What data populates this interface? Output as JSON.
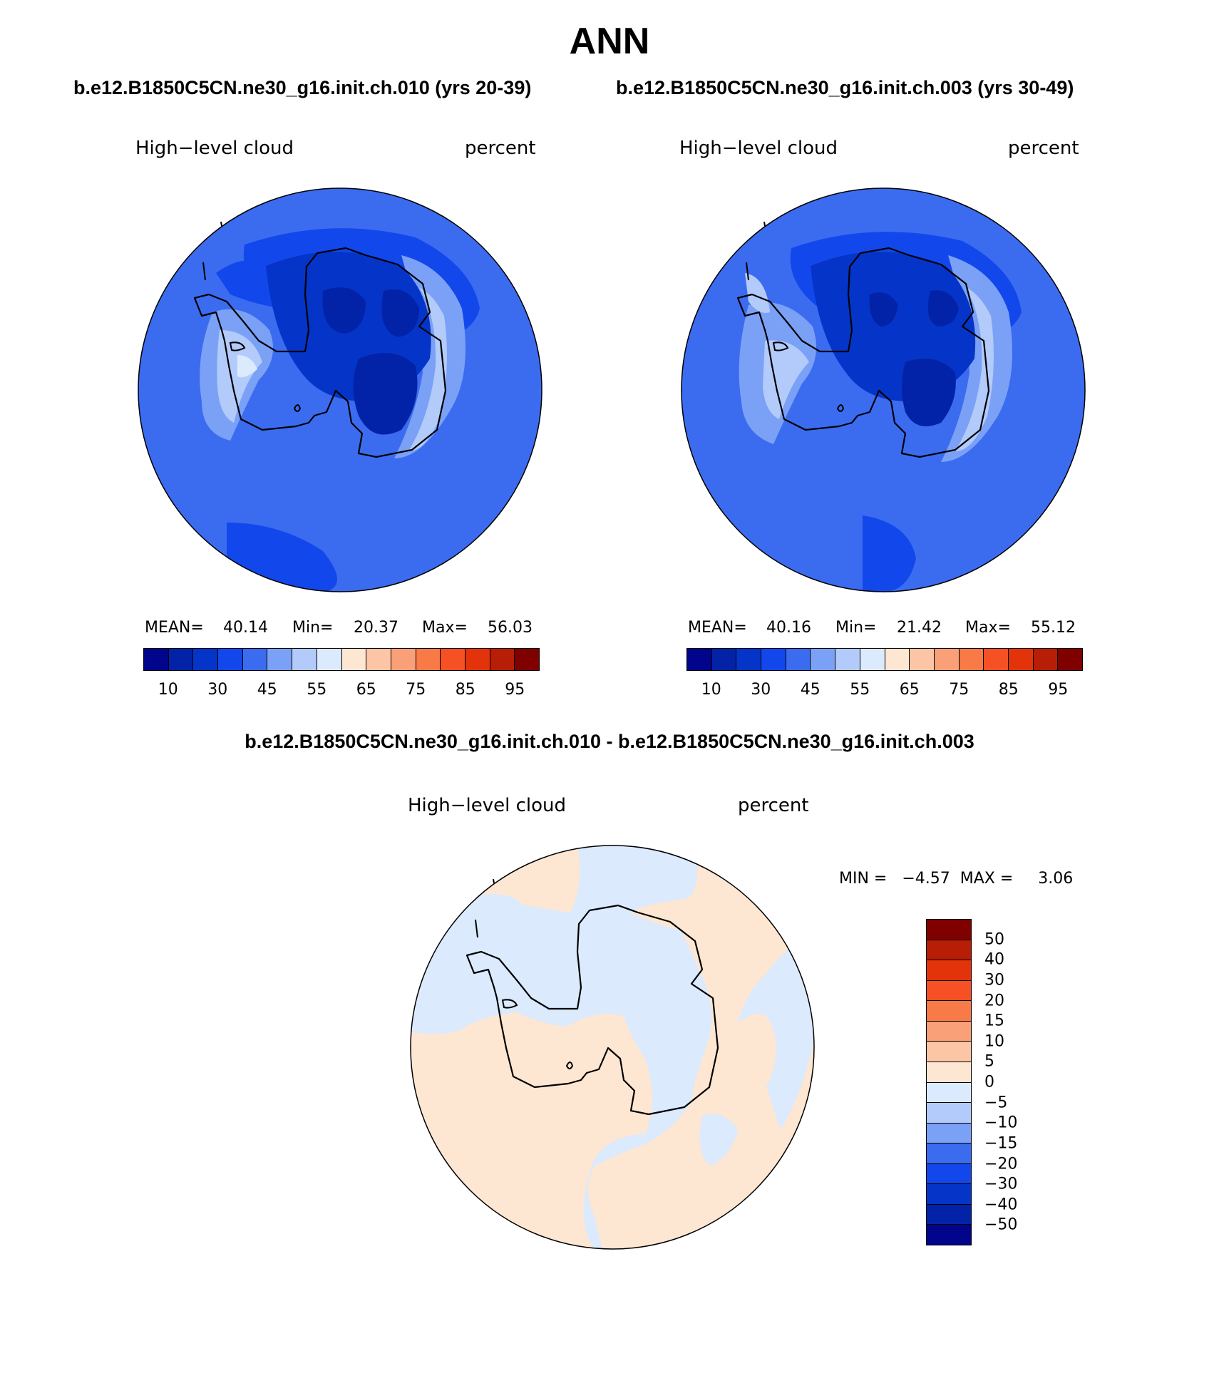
{
  "title": "ANN",
  "panels": [
    {
      "case_title": "b.e12.B1850C5CN.ne30_g16.init.ch.010 (yrs 20-39)",
      "variable": "High−level cloud",
      "units": "percent",
      "stats": {
        "mean_label": "MEAN=",
        "mean": "40.14",
        "min_label": "Min=",
        "min": "20.37",
        "max_label": "Max=",
        "max": "56.03"
      }
    },
    {
      "case_title": "b.e12.B1850C5CN.ne30_g16.init.ch.003 (yrs 30-49)",
      "variable": "High−level cloud",
      "units": "percent",
      "stats": {
        "mean_label": "MEAN=",
        "mean": "40.16",
        "min_label": "Min=",
        "min": "21.42",
        "max_label": "Max=",
        "max": "55.12"
      }
    }
  ],
  "colorbar": {
    "colors": [
      "#00058c",
      "#0223a8",
      "#0535c8",
      "#1248eb",
      "#3b6cf0",
      "#7ba1f6",
      "#b3cbfa",
      "#dbeafd",
      "#fde6d2",
      "#fcc5a6",
      "#f9a079",
      "#f77a47",
      "#f55124",
      "#e3330b",
      "#b81d05",
      "#800000"
    ],
    "tick_labels": [
      "10",
      "30",
      "45",
      "55",
      "65",
      "75",
      "85",
      "95"
    ]
  },
  "diff": {
    "title": "b.e12.B1850C5CN.ne30_g16.init.ch.010 - b.e12.B1850C5CN.ne30_g16.init.ch.003",
    "variable": "High−level cloud",
    "units": "percent",
    "min_max_text": "MIN =   −4.57  MAX =     3.06",
    "min": "-4.57",
    "max": "3.06",
    "colorbar": {
      "colors_top_to_bottom": [
        "#800000",
        "#b81d05",
        "#e3330b",
        "#f55124",
        "#f77a47",
        "#f9a079",
        "#fcc5a6",
        "#fde6d2",
        "#dbeafd",
        "#b3cbfa",
        "#7ba1f6",
        "#3b6cf0",
        "#1248eb",
        "#0535c8",
        "#0223a8",
        "#00058c"
      ],
      "tick_labels": [
        "50",
        "40",
        "30",
        "20",
        "15",
        "10",
        "5",
        "0",
        "−5",
        "−10",
        "−15",
        "−20",
        "−30",
        "−40",
        "−50"
      ]
    }
  }
}
